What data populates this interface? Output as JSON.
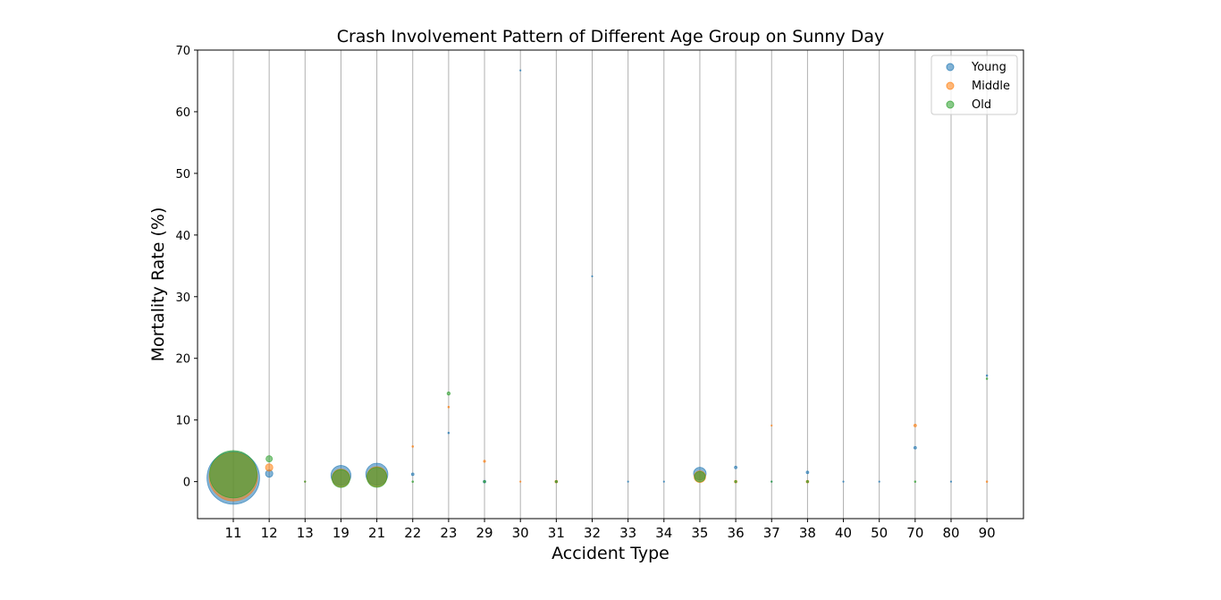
{
  "chart_data": {
    "type": "scatter",
    "title": "Crash Involvement Pattern of Different Age Group on Sunny Day",
    "xlabel": "Accident Type",
    "ylabel": "Mortality Rate (%)",
    "categories": [
      "11",
      "12",
      "13",
      "19",
      "21",
      "22",
      "23",
      "29",
      "30",
      "31",
      "32",
      "33",
      "34",
      "35",
      "36",
      "37",
      "38",
      "40",
      "50",
      "70",
      "80",
      "90"
    ],
    "ylim": [
      -6,
      70
    ],
    "yticks": [
      0,
      10,
      20,
      30,
      40,
      50,
      60,
      70
    ],
    "grid": "vertical",
    "legend": "top-right",
    "series": [
      {
        "name": "Young",
        "color": "#1f77b4",
        "points": [
          {
            "x": "11",
            "y": 0.6,
            "size": 50
          },
          {
            "x": "12",
            "y": 1.3,
            "size": 7
          },
          {
            "x": "13",
            "y": 0,
            "size": 1
          },
          {
            "x": "19",
            "y": 1.0,
            "size": 19
          },
          {
            "x": "21",
            "y": 1.2,
            "size": 21
          },
          {
            "x": "22",
            "y": 1.2,
            "size": 2.5
          },
          {
            "x": "23",
            "y": 7.9,
            "size": 1.5
          },
          {
            "x": "29",
            "y": 0,
            "size": 2.5
          },
          {
            "x": "30",
            "y": 66.7,
            "size": 0.8
          },
          {
            "x": "31",
            "y": 0,
            "size": 2
          },
          {
            "x": "32",
            "y": 33.3,
            "size": 0.8
          },
          {
            "x": "33",
            "y": 0,
            "size": 0.8
          },
          {
            "x": "34",
            "y": 0,
            "size": 0.8
          },
          {
            "x": "35",
            "y": 1.3,
            "size": 12
          },
          {
            "x": "36",
            "y": 2.3,
            "size": 2.5
          },
          {
            "x": "37",
            "y": 0,
            "size": 1
          },
          {
            "x": "38",
            "y": 1.5,
            "size": 2.5
          },
          {
            "x": "40",
            "y": 0,
            "size": 1
          },
          {
            "x": "50",
            "y": 0,
            "size": 0.8
          },
          {
            "x": "70",
            "y": 5.5,
            "size": 2.5
          },
          {
            "x": "80",
            "y": 0,
            "size": 1
          },
          {
            "x": "90",
            "y": 17.2,
            "size": 1.5
          }
        ]
      },
      {
        "name": "Middle",
        "color": "#ff7f0e",
        "points": [
          {
            "x": "11",
            "y": 0.8,
            "size": 46
          },
          {
            "x": "12",
            "y": 2.3,
            "size": 7
          },
          {
            "x": "13",
            "y": 0,
            "size": 1
          },
          {
            "x": "19",
            "y": 0.6,
            "size": 17
          },
          {
            "x": "21",
            "y": 0.8,
            "size": 19
          },
          {
            "x": "22",
            "y": 5.7,
            "size": 1.5
          },
          {
            "x": "23",
            "y": 12.1,
            "size": 1.5
          },
          {
            "x": "29",
            "y": 3.3,
            "size": 2
          },
          {
            "x": "30",
            "y": 0,
            "size": 0.8
          },
          {
            "x": "31",
            "y": 0,
            "size": 2.5
          },
          {
            "x": "35",
            "y": 0.8,
            "size": 11
          },
          {
            "x": "36",
            "y": 0,
            "size": 2.5
          },
          {
            "x": "37",
            "y": 9.1,
            "size": 1
          },
          {
            "x": "38",
            "y": 0,
            "size": 2.5
          },
          {
            "x": "70",
            "y": 9.1,
            "size": 2.5
          },
          {
            "x": "90",
            "y": 0,
            "size": 1.5
          }
        ]
      },
      {
        "name": "Old",
        "color": "#2ca02c",
        "points": [
          {
            "x": "11",
            "y": 1.2,
            "size": 45
          },
          {
            "x": "12",
            "y": 3.7,
            "size": 6
          },
          {
            "x": "13",
            "y": 0,
            "size": 1
          },
          {
            "x": "19",
            "y": 0.5,
            "size": 17
          },
          {
            "x": "21",
            "y": 0.7,
            "size": 19
          },
          {
            "x": "22",
            "y": 0,
            "size": 1.5
          },
          {
            "x": "23",
            "y": 14.3,
            "size": 3
          },
          {
            "x": "29",
            "y": 0,
            "size": 2
          },
          {
            "x": "31",
            "y": 0,
            "size": 2
          },
          {
            "x": "35",
            "y": 0.8,
            "size": 10
          },
          {
            "x": "36",
            "y": 0,
            "size": 2
          },
          {
            "x": "37",
            "y": 0,
            "size": 1
          },
          {
            "x": "38",
            "y": 0,
            "size": 2
          },
          {
            "x": "70",
            "y": 0,
            "size": 1.5
          },
          {
            "x": "90",
            "y": 16.7,
            "size": 1.5
          }
        ]
      }
    ]
  }
}
